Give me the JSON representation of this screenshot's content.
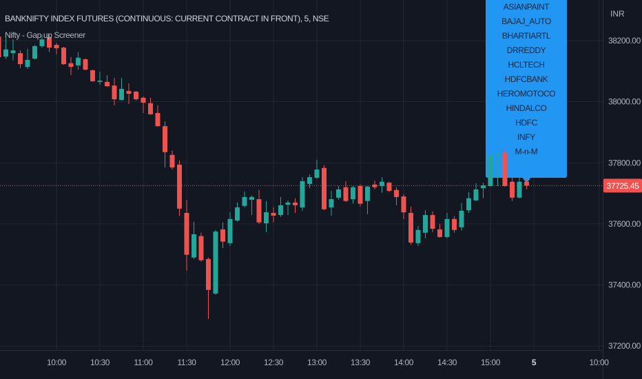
{
  "header": {
    "symbol_title": "BANKNIFTY INDEX FUTURES (CONTINUOUS: CURRENT CONTRACT IN FRONT), 5, NSE",
    "indicator_name": "Nifty - Gap up Screener"
  },
  "colors": {
    "background": "#131722",
    "grid": "#232733",
    "axis_text": "#b2b5be",
    "up": "#26a69a",
    "down": "#ef5350",
    "label_box": "#2196f3",
    "label_text": "#1c2333"
  },
  "screener_label": {
    "items": [
      "ASIANPAINT",
      "BAJAJ_AUTO",
      "BHARTIARTL",
      "DRREDDY",
      "HCLTECH",
      "HDFCBANK",
      "HEROMOTOCO",
      "HINDALCO",
      "HDFC",
      "INFY",
      "M-n-M"
    ]
  },
  "chart_data": {
    "type": "candlestick",
    "currency": "INR",
    "interval_minutes": 5,
    "ylim": [
      37187,
      38333
    ],
    "grid": true,
    "y_ticks": [
      38200,
      38000,
      37800,
      37600,
      37400,
      37200
    ],
    "y_tick_labels": [
      "38200.00",
      "38000.00",
      "37800.00",
      "37600.00",
      "37400.00",
      "37200.00"
    ],
    "last_price": 37725.45,
    "last_price_label": "37725.45",
    "x_ticks": [
      {
        "time": "10:00",
        "label": "10:00"
      },
      {
        "time": "10:30",
        "label": "10:30"
      },
      {
        "time": "11:00",
        "label": "11:00"
      },
      {
        "time": "11:30",
        "label": "11:30"
      },
      {
        "time": "12:00",
        "label": "12:00"
      },
      {
        "time": "12:30",
        "label": "12:30"
      },
      {
        "time": "13:00",
        "label": "13:00"
      },
      {
        "time": "13:30",
        "label": "13:30"
      },
      {
        "time": "14:00",
        "label": "14:00"
      },
      {
        "time": "14:30",
        "label": "14:30"
      },
      {
        "time": "15:00",
        "label": "15:00"
      },
      {
        "time": "next 09:15",
        "label": "5"
      },
      {
        "time": "next 10:00",
        "label": "10:00"
      }
    ],
    "first_candle_time": "09:20",
    "ohlc": [
      [
        38213,
        38225,
        38140,
        38146
      ],
      [
        38148,
        38208,
        38141,
        38171
      ],
      [
        38159,
        38204,
        38135,
        38168
      ],
      [
        38159,
        38168,
        38110,
        38123
      ],
      [
        38114,
        38173,
        38108,
        38137
      ],
      [
        38141,
        38186,
        38139,
        38182
      ],
      [
        38182,
        38220,
        38177,
        38204
      ],
      [
        38211,
        38220,
        38162,
        38177
      ],
      [
        38186,
        38192,
        38155,
        38175
      ],
      [
        38177,
        38180,
        38121,
        38123
      ],
      [
        38126,
        38146,
        38087,
        38114
      ],
      [
        38119,
        38162,
        38105,
        38144
      ],
      [
        38139,
        38142,
        38103,
        38105
      ],
      [
        38103,
        38105,
        38065,
        38067
      ],
      [
        38065,
        38098,
        38056,
        38069
      ],
      [
        38065,
        38087,
        38049,
        38051
      ],
      [
        38053,
        38078,
        37988,
        38008
      ],
      [
        38006,
        38078,
        38004,
        38042
      ],
      [
        38035,
        38060,
        37993,
        38026
      ],
      [
        38033,
        38035,
        38004,
        38008
      ],
      [
        38013,
        38017,
        37963,
        37997
      ],
      [
        37995,
        38013,
        37957,
        37959
      ],
      [
        37963,
        37988,
        37918,
        37920
      ],
      [
        37920,
        37936,
        37785,
        37835
      ],
      [
        37826,
        37840,
        37778,
        37785
      ],
      [
        37794,
        37808,
        37627,
        37650
      ],
      [
        37636,
        37679,
        37447,
        37499
      ],
      [
        37490,
        37607,
        37485,
        37566
      ],
      [
        37560,
        37571,
        37476,
        37481
      ],
      [
        37485,
        37490,
        37289,
        37384
      ],
      [
        37372,
        37580,
        37368,
        37575
      ],
      [
        37582,
        37605,
        37521,
        37542
      ],
      [
        37537,
        37638,
        37528,
        37616
      ],
      [
        37611,
        37670,
        37607,
        37654
      ],
      [
        37659,
        37706,
        37654,
        37688
      ],
      [
        37679,
        37693,
        37629,
        37688
      ],
      [
        37681,
        37711,
        37600,
        37605
      ],
      [
        37602,
        37675,
        37573,
        37638
      ],
      [
        37636,
        37654,
        37605,
        37627
      ],
      [
        37629,
        37688,
        37623,
        37661
      ],
      [
        37663,
        37677,
        37629,
        37670
      ],
      [
        37670,
        37684,
        37636,
        37661
      ],
      [
        37654,
        37753,
        37643,
        37740
      ],
      [
        37731,
        37762,
        37717,
        37753
      ],
      [
        37751,
        37810,
        37747,
        37778
      ],
      [
        37783,
        37792,
        37645,
        37648
      ],
      [
        37654,
        37708,
        37627,
        37681
      ],
      [
        37686,
        37724,
        37679,
        37713
      ],
      [
        37720,
        37740,
        37672,
        37675
      ],
      [
        37681,
        37724,
        37666,
        37720
      ],
      [
        37724,
        37729,
        37657,
        37666
      ],
      [
        37675,
        37724,
        37632,
        37722
      ],
      [
        37729,
        37742,
        37713,
        37720
      ],
      [
        37724,
        37753,
        37702,
        37738
      ],
      [
        37735,
        37738,
        37704,
        37708
      ],
      [
        37711,
        37720,
        37661,
        37688
      ],
      [
        37690,
        37697,
        37616,
        37638
      ],
      [
        37636,
        37656,
        37532,
        37539
      ],
      [
        37537,
        37593,
        37528,
        37580
      ],
      [
        37571,
        37645,
        37553,
        37629
      ],
      [
        37629,
        37641,
        37573,
        37584
      ],
      [
        37582,
        37600,
        37555,
        37557
      ],
      [
        37557,
        37636,
        37553,
        37616
      ],
      [
        37616,
        37625,
        37571,
        37580
      ],
      [
        37589,
        37668,
        37578,
        37643
      ],
      [
        37645,
        37704,
        37636,
        37684
      ],
      [
        37677,
        37733,
        37675,
        37713
      ],
      [
        37717,
        37735,
        37684,
        37726
      ],
      [
        37724,
        37837,
        37722,
        37823
      ],
      [
        37826,
        37832,
        37724,
        37828
      ],
      [
        37832,
        37846,
        37722,
        37724
      ],
      [
        37738,
        37751,
        37675,
        37686
      ],
      [
        37686,
        37751,
        37684,
        37738
      ],
      [
        37738,
        37747,
        37713,
        37725.45
      ]
    ]
  }
}
